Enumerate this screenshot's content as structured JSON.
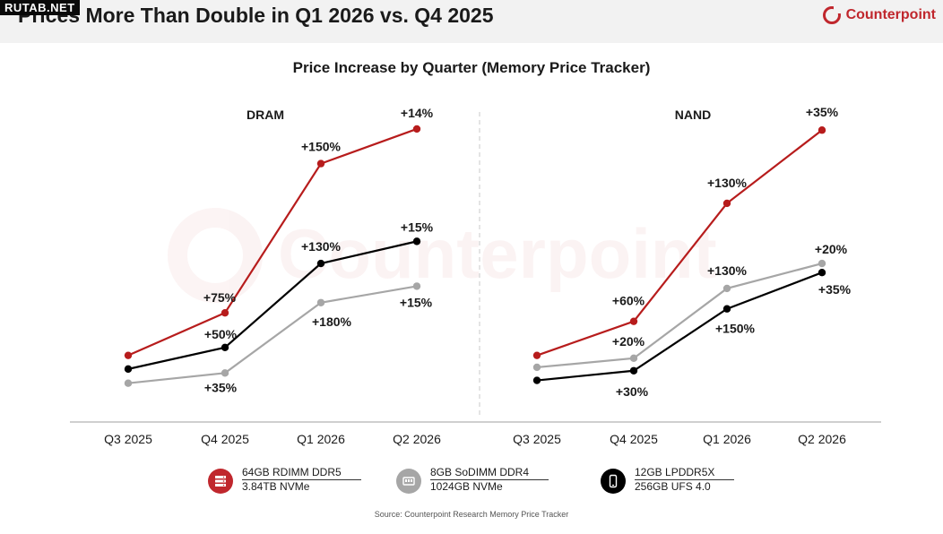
{
  "header": {
    "watermark": "RUTAB.NET",
    "headline": "Prices More Than Double in Q1 2026 vs. Q4 2025",
    "brand": "Counterpoint"
  },
  "chart_data": {
    "type": "line",
    "title": "Price Increase by Quarter (Memory Price Tracker)",
    "categories": [
      "Q3 2025",
      "Q4 2025",
      "Q1 2026",
      "Q2 2026"
    ],
    "panels": [
      {
        "name": "DRAM",
        "series": [
          {
            "name": "64GB RDIMM DDR5",
            "color": "#b71c1c",
            "values": [
              100,
              175,
              438,
              499
            ],
            "labels": [
              "",
              "+75%",
              "+150%",
              "+14%"
            ]
          },
          {
            "name": "12GB LPDDR5X",
            "color": "#000000",
            "values": [
              76,
              114,
              262,
              301
            ],
            "labels": [
              "",
              "+50%",
              "+130%",
              "+15%"
            ]
          },
          {
            "name": "8GB SoDIMM DDR4",
            "color": "#a6a6a6",
            "values": [
              51,
              69,
              193,
              222
            ],
            "labels": [
              "",
              "+35%",
              "+180%",
              "+15%"
            ]
          }
        ]
      },
      {
        "name": "NAND",
        "series": [
          {
            "name": "3.84TB NVMe",
            "color": "#b71c1c",
            "values": [
              100,
              160,
              368,
              497
            ],
            "labels": [
              "",
              "+60%",
              "+130%",
              "+35%"
            ]
          },
          {
            "name": "1024GB NVMe",
            "color": "#a6a6a6",
            "values": [
              79,
              95,
              218,
              262
            ],
            "labels": [
              "",
              "+20%",
              "+130%",
              "+20%"
            ]
          },
          {
            "name": "256GB UFS 4.0",
            "color": "#000000",
            "values": [
              56,
              73,
              182,
              246
            ],
            "labels": [
              "",
              "+30%",
              "+150%",
              "+35%"
            ]
          }
        ]
      }
    ],
    "ylim": [
      0,
      600
    ],
    "grid": false,
    "legend_position": "bottom"
  },
  "legend": [
    {
      "line1": "64GB RDIMM DDR5",
      "line2": "3.84TB NVMe",
      "color": "#c0272d",
      "icon": "server-icon"
    },
    {
      "line1": "8GB SoDIMM DDR4",
      "line2": "1024GB NVMe",
      "color": "#a6a6a6",
      "icon": "ram-stick-icon"
    },
    {
      "line1": "12GB LPDDR5X",
      "line2": "256GB UFS 4.0",
      "color": "#000000",
      "icon": "smartphone-icon"
    }
  ],
  "source": "Source: Counterpoint Research Memory Price Tracker",
  "background_watermark": "Counterpoint"
}
